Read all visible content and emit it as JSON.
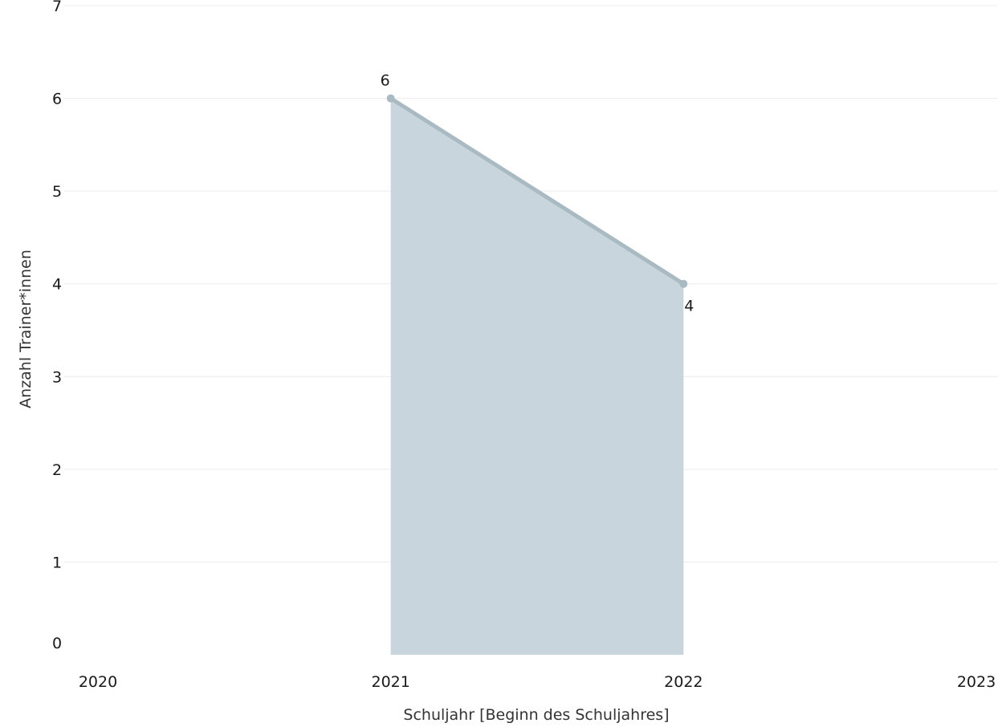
{
  "chart_data": {
    "type": "area",
    "x": [
      2021,
      2022
    ],
    "series": [
      {
        "values": [
          6,
          4
        ]
      }
    ],
    "data_labels": [
      "6",
      "4"
    ],
    "xlabel": "Schuljahr [Beginn des Schuljahres]",
    "ylabel": "Anzahl Trainer*innen",
    "xlim": [
      2020,
      2023
    ],
    "ylim": [
      0,
      7
    ],
    "x_ticks": [
      "2020",
      "2021",
      "2022",
      "2023"
    ],
    "y_ticks": [
      "0",
      "1",
      "2",
      "3",
      "4",
      "5",
      "6",
      "7"
    ],
    "grid": true,
    "legend": "none",
    "colors": {
      "area": "#c9d5dc",
      "line": "#a9bac3",
      "marker": "#a9bac3"
    }
  }
}
